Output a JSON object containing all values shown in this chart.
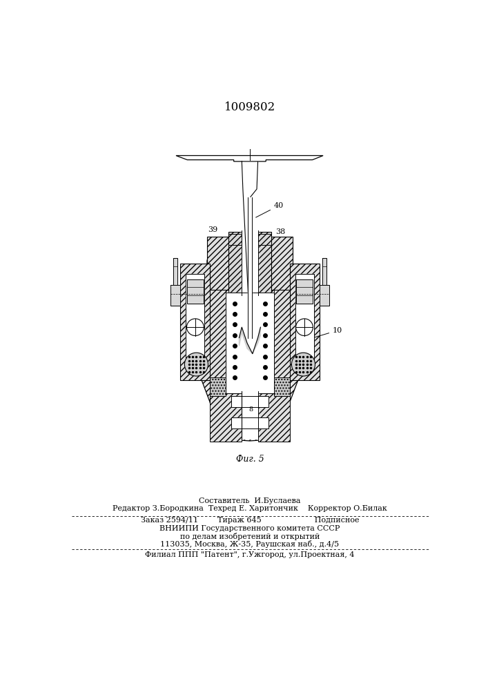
{
  "patent_number": "1009802",
  "fig_label": "Фиг. 5",
  "bg_color": "#ffffff",
  "footer_line1": "Составитель  И.Буслаева",
  "footer_line2": "Редактор З.Бородкина  Техред Е. Харитончик    Корректор О.Билак",
  "footer_line3": "Заказ 2594/11        Тираж 645                      Подписное",
  "footer_line4": "ВНИИПИ Государственного комитета СССР",
  "footer_line5": "по делам изобретений и открытий",
  "footer_line6": "113035, Москва, Ж-35, Раушская наб., д.4/5",
  "footer_line7": "Филиал ППП \"Патент\", г.Ужгород, ул.Проектная, 4"
}
